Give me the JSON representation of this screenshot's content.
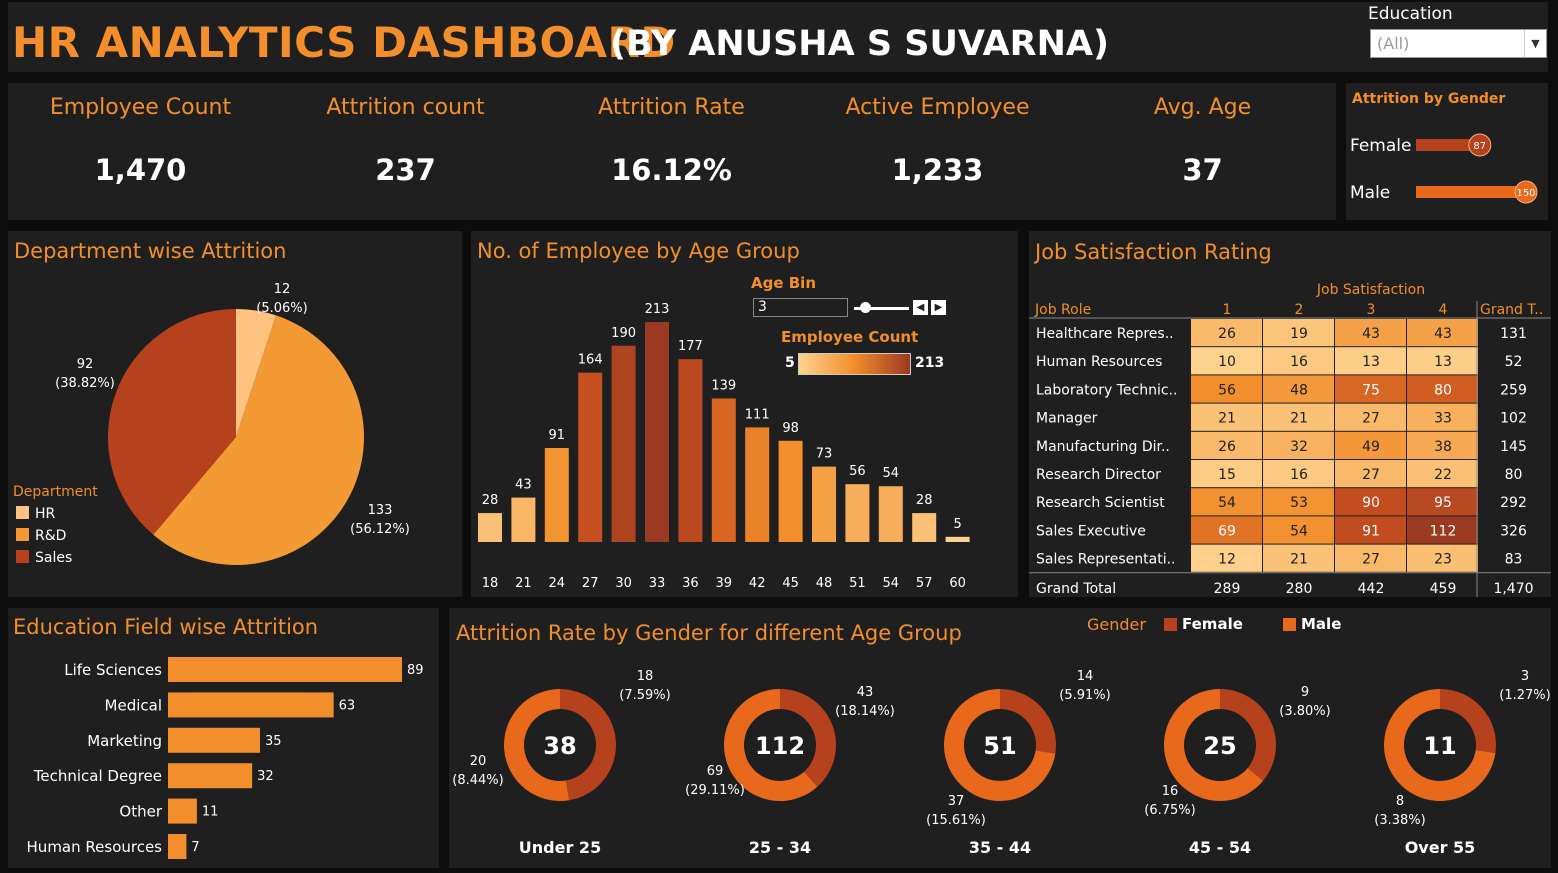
{
  "header": {
    "title": "HR ANALYTICS DASHBOARD",
    "subtitle": "(BY ANUSHA S SUVARNA)",
    "filter_label": "Education",
    "filter_value": "(All)"
  },
  "kpis": [
    {
      "label": "Employee Count",
      "value": "1,470"
    },
    {
      "label": "Attrition count",
      "value": "237"
    },
    {
      "label": "Attrition Rate",
      "value": "16.12%"
    },
    {
      "label": "Active Employee",
      "value": "1,233"
    },
    {
      "label": "Avg. Age",
      "value": "37"
    }
  ],
  "colors": {
    "orange": "#f28e2b",
    "light": "#fdc37f",
    "mid": "#f39a35",
    "dark_orange": "#e8681c",
    "red": "#b5411d",
    "dark_red": "#9a3a22",
    "panel": "#1f1f1f"
  },
  "chart_data": [
    {
      "id": "gender",
      "type": "bar",
      "title": "Attrition by Gender",
      "categories": [
        "Female",
        "Male"
      ],
      "values": [
        87,
        150
      ],
      "xlim": [
        0,
        150
      ]
    },
    {
      "id": "department",
      "type": "pie",
      "title": "Department wise Attrition",
      "legend_title": "Department",
      "categories": [
        "HR",
        "R&D",
        "Sales"
      ],
      "values": [
        12,
        133,
        92
      ],
      "labels": [
        "12\n(5.06%)",
        "133\n(56.12%)",
        "92\n(38.82%)"
      ],
      "colors": [
        "#fdc37f",
        "#f39a35",
        "#b5411d"
      ]
    },
    {
      "id": "age",
      "type": "bar",
      "title": "No. of Employee by Age Group",
      "categories": [
        "18",
        "21",
        "24",
        "27",
        "30",
        "33",
        "36",
        "39",
        "42",
        "45",
        "48",
        "51",
        "54",
        "57",
        "60"
      ],
      "values": [
        28,
        43,
        91,
        164,
        190,
        213,
        177,
        139,
        111,
        98,
        73,
        56,
        54,
        28,
        5
      ],
      "ylim": [
        0,
        213
      ],
      "param_label": "Age Bin",
      "param_value": "3",
      "color_legend_title": "Employee Count",
      "color_min": "5",
      "color_max": "213"
    },
    {
      "id": "jobsat",
      "type": "heatmap",
      "title": "Job Satisfaction Rating",
      "column_header": "Job Satisfaction",
      "row_header": "Job Role",
      "total_header": "Grand T..",
      "columns": [
        "1",
        "2",
        "3",
        "4"
      ],
      "rows": [
        "Healthcare Repres..",
        "Human Resources",
        "Laboratory Technic..",
        "Manager",
        "Manufacturing Dir..",
        "Research Director",
        "Research Scientist",
        "Sales Executive",
        "Sales Representati.."
      ],
      "values": [
        [
          26,
          19,
          43,
          43
        ],
        [
          10,
          16,
          13,
          13
        ],
        [
          56,
          48,
          75,
          80
        ],
        [
          21,
          21,
          27,
          33
        ],
        [
          26,
          32,
          49,
          38
        ],
        [
          15,
          16,
          27,
          22
        ],
        [
          54,
          53,
          90,
          95
        ],
        [
          69,
          54,
          91,
          112
        ],
        [
          12,
          21,
          27,
          23
        ]
      ],
      "row_totals": [
        "131",
        "52",
        "259",
        "102",
        "145",
        "80",
        "292",
        "326",
        "83"
      ],
      "grand_total_label": "Grand Total",
      "column_totals": [
        "289",
        "280",
        "442",
        "459"
      ],
      "grand_total": "1,470"
    },
    {
      "id": "edufield",
      "type": "bar",
      "title": "Education Field wise Attrition",
      "categories": [
        "Life Sciences",
        "Medical",
        "Marketing",
        "Technical Degree",
        "Other",
        "Human Resources"
      ],
      "values": [
        89,
        63,
        35,
        32,
        11,
        7
      ],
      "xlim": [
        0,
        89
      ]
    },
    {
      "id": "agegender",
      "type": "pie",
      "title": "Attrition Rate by Gender for different Age Group",
      "legend_title": "Gender",
      "series_names": [
        "Female",
        "Male"
      ],
      "groups": [
        {
          "name": "Under 25",
          "total": "38",
          "female": 18,
          "male": 20,
          "female_label": "18\n(7.59%)",
          "male_label": "20\n(8.44%)"
        },
        {
          "name": "25 - 34",
          "total": "112",
          "female": 43,
          "male": 69,
          "female_label": "43\n(18.14%)",
          "male_label": "69\n(29.11%)"
        },
        {
          "name": "35 - 44",
          "total": "51",
          "female": 14,
          "male": 37,
          "female_label": "14\n(5.91%)",
          "male_label": "37\n(15.61%)"
        },
        {
          "name": "45 - 54",
          "total": "25",
          "female": 9,
          "male": 16,
          "female_label": "9\n(3.80%)",
          "male_label": "16\n(6.75%)"
        },
        {
          "name": "Over 55",
          "total": "11",
          "female": 3,
          "male": 8,
          "female_label": "3\n(1.27%)",
          "male_label": "8\n(3.38%)"
        }
      ]
    }
  ]
}
